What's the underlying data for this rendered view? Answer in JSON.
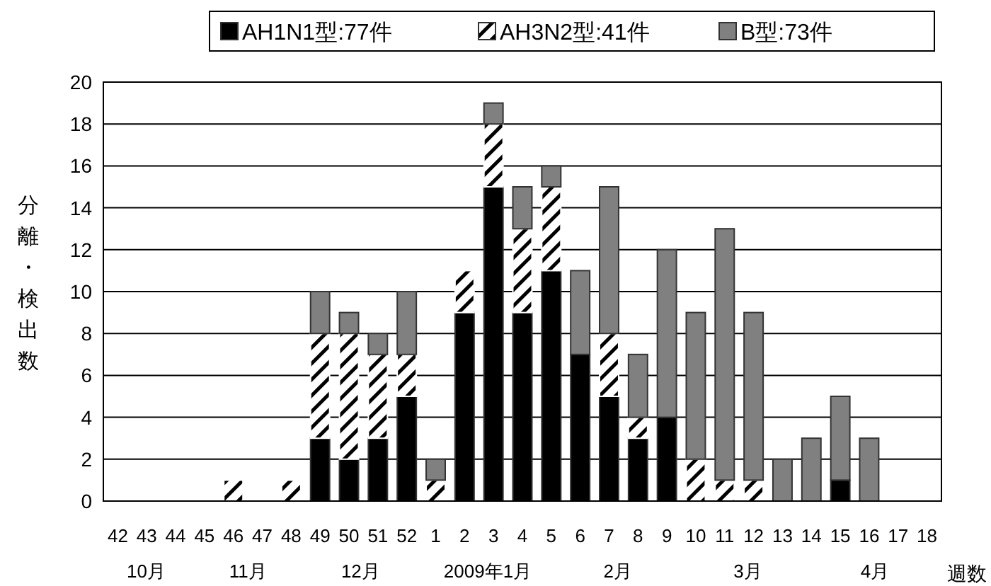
{
  "chart_data": {
    "type": "bar",
    "stacked": true,
    "categories": [
      "42",
      "43",
      "44",
      "45",
      "46",
      "47",
      "48",
      "49",
      "50",
      "51",
      "52",
      "1",
      "2",
      "3",
      "4",
      "5",
      "6",
      "7",
      "8",
      "9",
      "10",
      "11",
      "12",
      "13",
      "14",
      "15",
      "16",
      "17",
      "18"
    ],
    "series": [
      {
        "name": "AH1N1型:77件",
        "color": "#000000",
        "values": [
          0,
          0,
          0,
          0,
          0,
          0,
          0,
          3,
          2,
          3,
          5,
          0,
          9,
          15,
          9,
          11,
          7,
          5,
          3,
          4,
          0,
          0,
          0,
          0,
          0,
          1,
          0,
          0,
          0
        ]
      },
      {
        "name": "AH3N2型:41件",
        "color": "#ffffff",
        "values": [
          0,
          0,
          0,
          0,
          1,
          0,
          1,
          5,
          6,
          4,
          2,
          1,
          2,
          3,
          4,
          4,
          0,
          3,
          1,
          0,
          2,
          1,
          1,
          0,
          0,
          0,
          0,
          0,
          0
        ]
      },
      {
        "name": "B型:73件",
        "color": "#808080",
        "values": [
          0,
          0,
          0,
          0,
          0,
          0,
          0,
          2,
          1,
          1,
          3,
          1,
          0,
          1,
          2,
          1,
          4,
          7,
          3,
          8,
          7,
          12,
          8,
          2,
          3,
          4,
          3,
          0,
          0
        ]
      }
    ],
    "ylim": [
      0,
      20
    ],
    "yticks": [
      0,
      2,
      4,
      6,
      8,
      10,
      12,
      14,
      16,
      18,
      20
    ],
    "grid": "y",
    "legend": "top",
    "ylabel": "分離・検出数",
    "xlabel": "週数",
    "annotations": [
      "10月",
      "11月",
      "12月",
      "2009年1月",
      "2月",
      "3月",
      "4月"
    ]
  }
}
